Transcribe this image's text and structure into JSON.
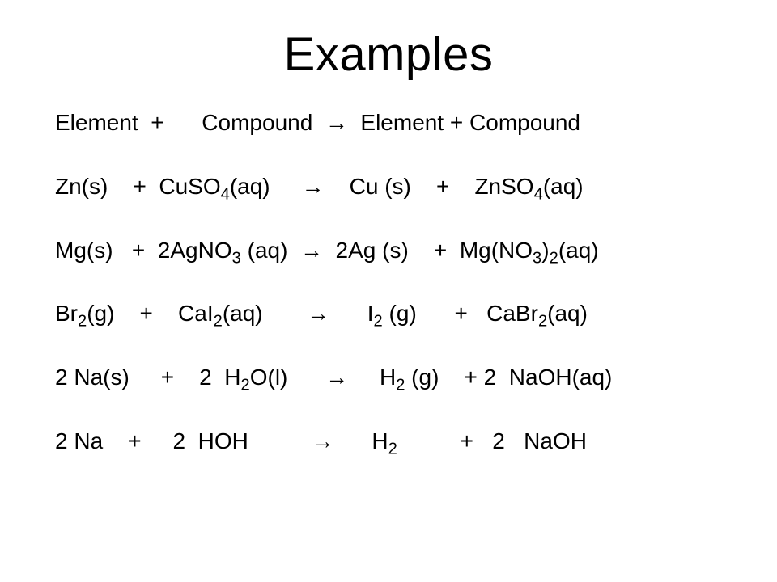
{
  "title": "Examples",
  "text_color": "#000000",
  "background_color": "#ffffff",
  "title_fontsize": 58,
  "body_fontsize": 28,
  "equations": [
    {
      "id": "general-form",
      "html": "Element&nbsp;&nbsp;+&nbsp;&nbsp;&nbsp;&nbsp;&nbsp;&nbsp;Compound&nbsp;&nbsp;<span class='arrow'>&#8594;</span>&nbsp;&nbsp;Element + Compound"
    },
    {
      "id": "zn-cuso4",
      "html": "Zn(s)&nbsp;&nbsp;&nbsp;&nbsp;+&nbsp;&nbsp;CuSO<span class='sub'>4</span>(aq)&nbsp;&nbsp;&nbsp;&nbsp;&nbsp;<span class='arrow'>&#8594;</span>&nbsp;&nbsp;&nbsp;&nbsp;Cu (s)&nbsp;&nbsp;&nbsp;&nbsp;+&nbsp;&nbsp;&nbsp;&nbsp;ZnSO<span class='sub'>4</span>(aq)"
    },
    {
      "id": "mg-agno3",
      "html": "Mg(s)&nbsp;&nbsp;&nbsp;+&nbsp;&nbsp;2AgNO<span class='sub'>3</span> (aq)&nbsp;&nbsp;<span class='arrow'>&#8594;</span>&nbsp;&nbsp;2Ag (s)&nbsp;&nbsp;&nbsp;&nbsp;+&nbsp;&nbsp;Mg(NO<span class='sub'>3</span>)<span class='sub'>2</span>(aq)"
    },
    {
      "id": "br2-cai2",
      "html": "Br<span class='sub'>2</span>(g)&nbsp;&nbsp;&nbsp;&nbsp;+&nbsp;&nbsp;&nbsp;&nbsp;CaI<span class='sub'>2</span>(aq)&nbsp;&nbsp;&nbsp;&nbsp;&nbsp;&nbsp;&nbsp;<span class='arrow'>&#8594;</span>&nbsp;&nbsp;&nbsp;&nbsp;&nbsp;&nbsp;I<span class='sub'>2</span> (g)&nbsp;&nbsp;&nbsp;&nbsp;&nbsp;&nbsp;+&nbsp;&nbsp;&nbsp;CaBr<span class='sub'>2</span>(aq)"
    },
    {
      "id": "na-h2o",
      "html": "2 Na(s)&nbsp;&nbsp;&nbsp;&nbsp;&nbsp;+&nbsp;&nbsp;&nbsp;&nbsp;2&nbsp;&nbsp;H<span class='sub'>2</span>O(l)&nbsp;&nbsp;&nbsp;&nbsp;&nbsp;&nbsp;<span class='arrow'>&#8594;</span>&nbsp;&nbsp;&nbsp;&nbsp;&nbsp;H<span class='sub'>2</span> (g)&nbsp;&nbsp;&nbsp;&nbsp;+ 2&nbsp;&nbsp;NaOH(aq)"
    },
    {
      "id": "na-hoh",
      "html": "2 Na&nbsp;&nbsp;&nbsp;&nbsp;+&nbsp;&nbsp;&nbsp;&nbsp;&nbsp;2&nbsp;&nbsp;HOH&nbsp;&nbsp;&nbsp;&nbsp;&nbsp;&nbsp;&nbsp;&nbsp;&nbsp;&nbsp;<span class='arrow'>&#8594;</span>&nbsp;&nbsp;&nbsp;&nbsp;&nbsp;&nbsp;H<span class='sub'>2</span>&nbsp;&nbsp;&nbsp;&nbsp;&nbsp;&nbsp;&nbsp;&nbsp;&nbsp;&nbsp;+&nbsp;&nbsp;&nbsp;2&nbsp;&nbsp;&nbsp;NaOH"
    }
  ]
}
